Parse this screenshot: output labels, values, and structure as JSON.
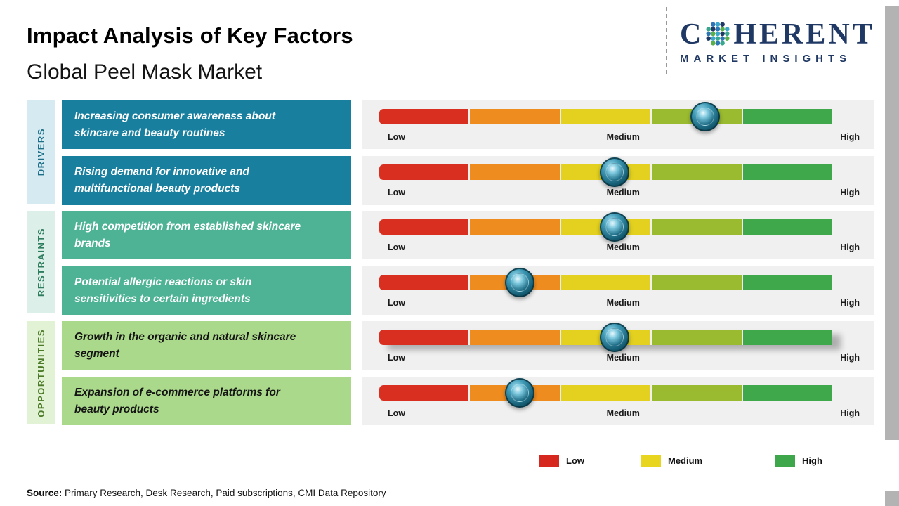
{
  "header": {
    "title": "Impact Analysis of Key Factors",
    "subtitle": "Global Peel Mask Market",
    "logo": {
      "word_start": "C",
      "word_rest": "HERENT",
      "tagline": "MARKET INSIGHTS"
    }
  },
  "categories": [
    {
      "label": "DRIVERS"
    },
    {
      "label": "RESTRAINTS"
    },
    {
      "label": "OPPORTUNITIES"
    }
  ],
  "scale": {
    "low": "Low",
    "medium": "Medium",
    "high": "High"
  },
  "scale_colors": [
    "#d92f20",
    "#ef8c20",
    "#e3d01f",
    "#9aba30",
    "#3fa84a"
  ],
  "rows": [
    {
      "category": "DRIVERS",
      "text": "Increasing consumer awareness about\nskincare and beauty routines",
      "marker_pct": 72,
      "impact": "Medium-High"
    },
    {
      "category": "DRIVERS",
      "text": "Rising demand for innovative and\nmultifunctional beauty products",
      "marker_pct": 52,
      "impact": "Medium"
    },
    {
      "category": "RESTRAINTS",
      "text": "High competition from established skincare\nbrands",
      "marker_pct": 52,
      "impact": "Medium"
    },
    {
      "category": "RESTRAINTS",
      "text": "Potential allergic reactions or skin\nsensitivities to certain ingredients",
      "marker_pct": 31,
      "impact": "Low-Medium"
    },
    {
      "category": "OPPORTUNITIES",
      "text": "Growth in the organic and natural skincare\nsegment",
      "marker_pct": 52,
      "impact": "Medium"
    },
    {
      "category": "OPPORTUNITIES",
      "text": "Expansion of e-commerce platforms for\nbeauty products",
      "marker_pct": 31,
      "impact": "Low-Medium"
    }
  ],
  "legend": [
    {
      "label": "Low",
      "color": "#d7281f"
    },
    {
      "label": "Medium",
      "color": "#e8d51f"
    },
    {
      "label": "High",
      "color": "#3ea64b"
    }
  ],
  "source": {
    "prefix": "Source:",
    "text": " Primary Research, Desk Research, Paid subscriptions, CMI Data Repository"
  },
  "colors": {
    "drivers_box": "#187f9f",
    "restraints_box": "#4db394",
    "opportunities_box": "#abd98b",
    "drivers_tab": "#d6eaf2",
    "restraints_tab": "#dcefe9",
    "opportunities_tab": "#e1f2d5",
    "panel_bg": "#f0f0f0",
    "logo_navy": "#1f3864",
    "edge_strip": "#b3b3b3"
  }
}
